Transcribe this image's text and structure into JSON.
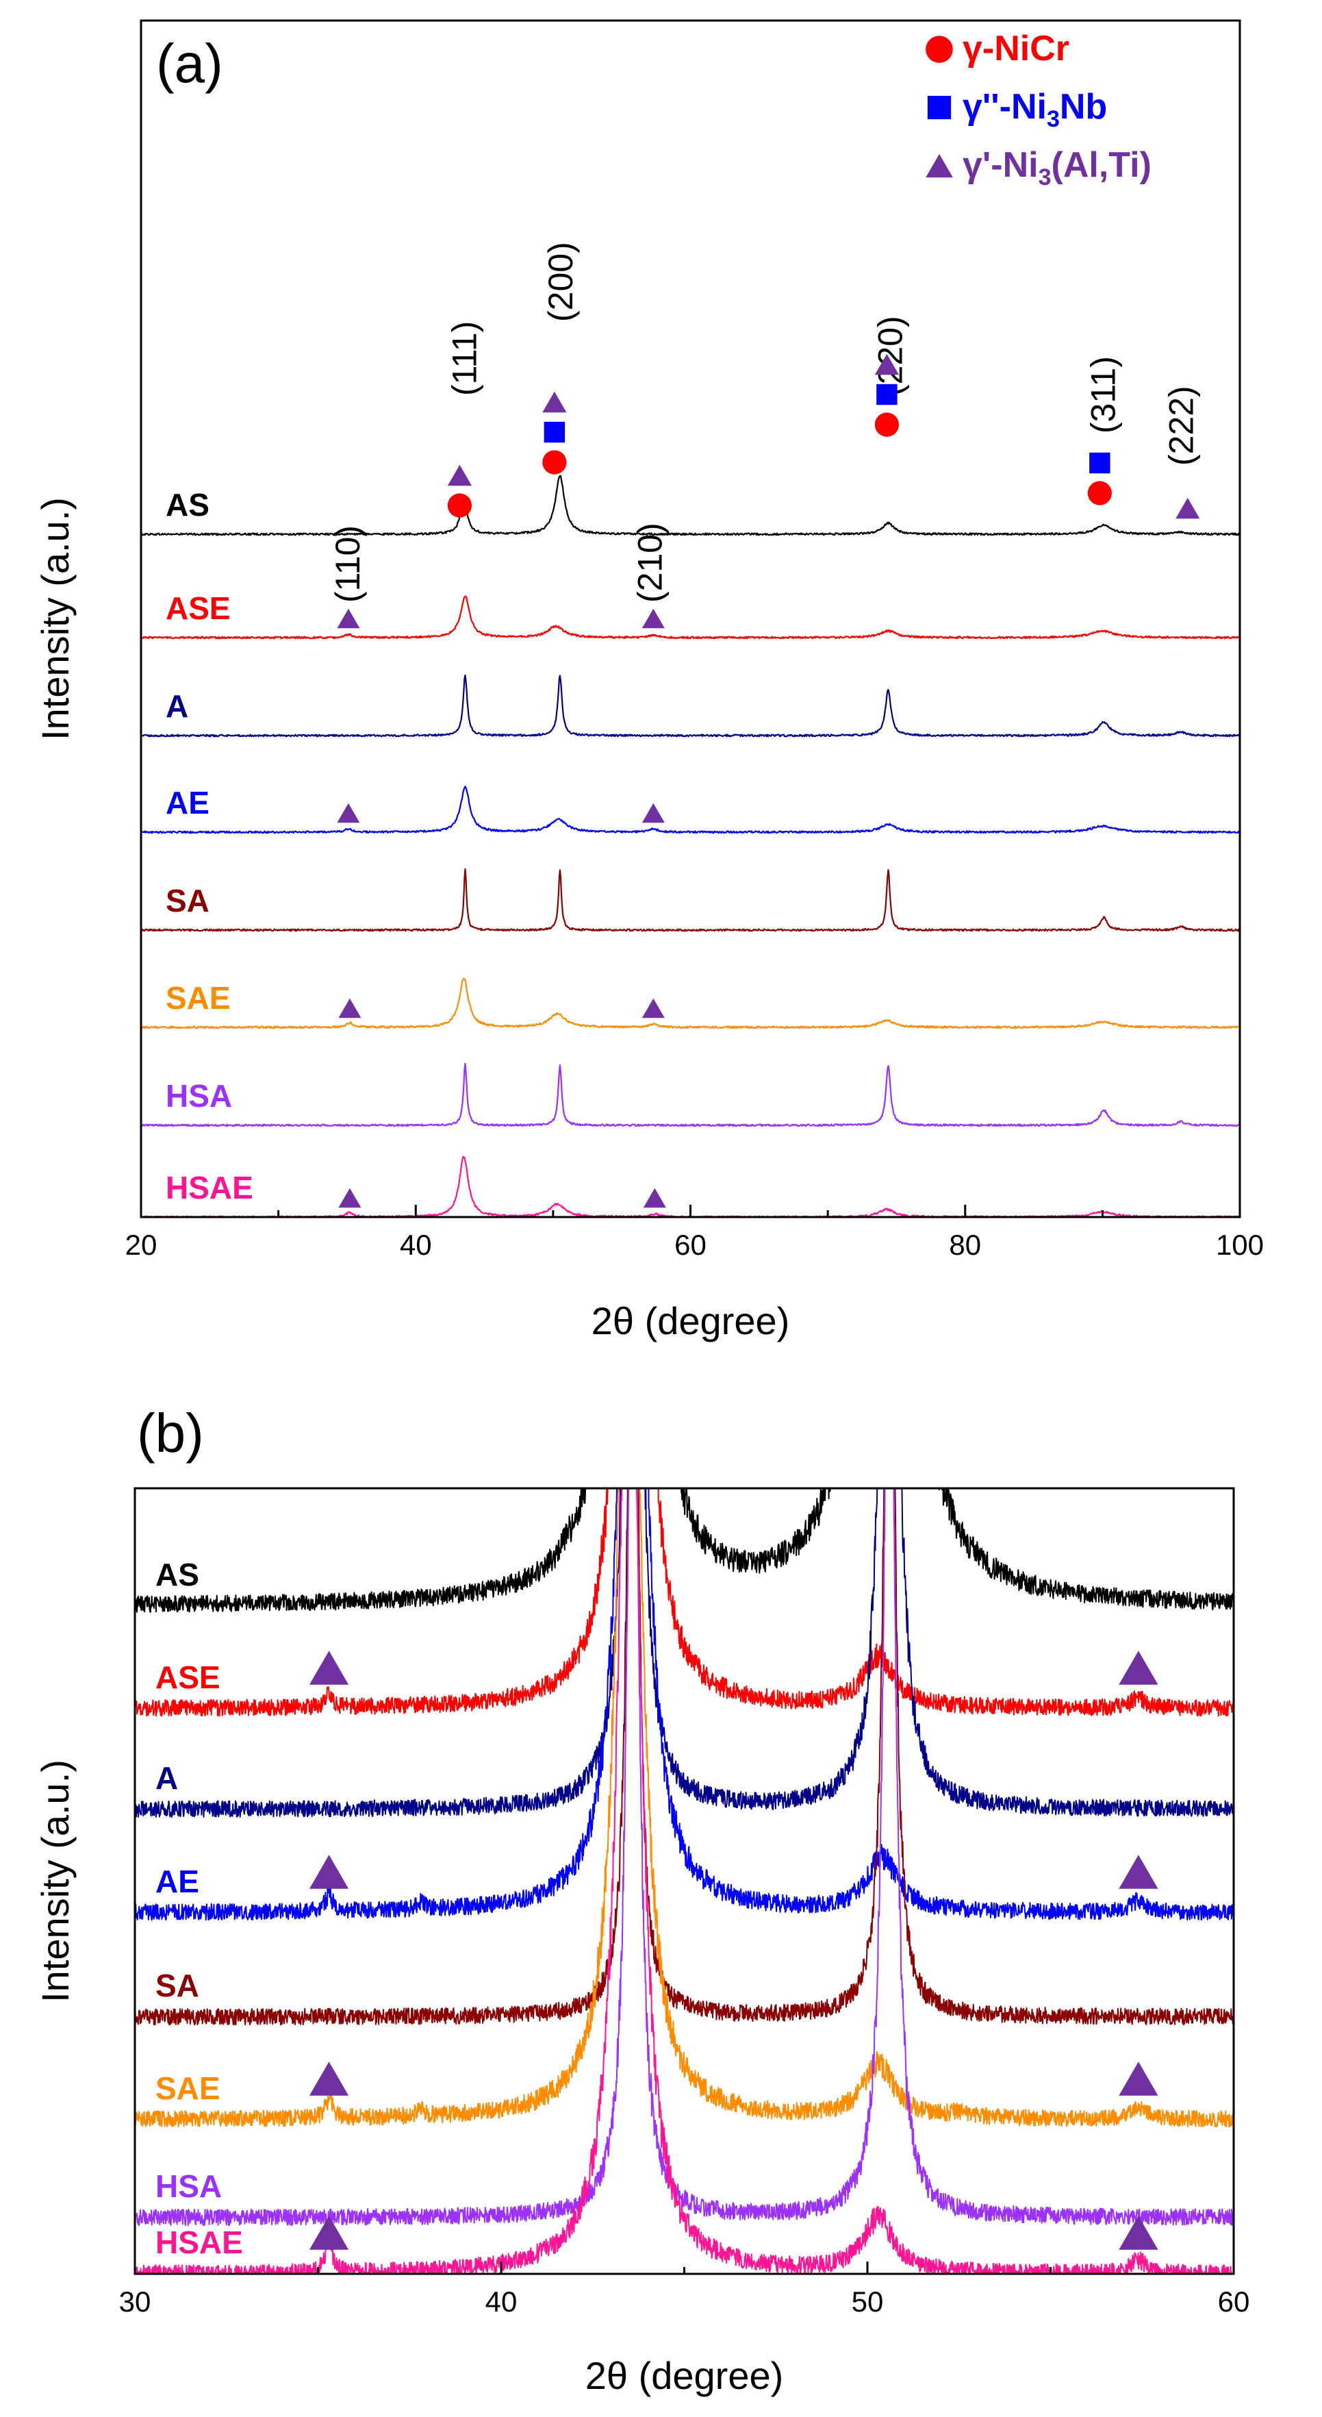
{
  "colors": {
    "AS": "#000000",
    "ASE": "#ff0000",
    "A": "#00008b",
    "AE": "#0000ff",
    "SA": "#8b0000",
    "SAE": "#ff8c00",
    "HSA": "#9b30ff",
    "HSAE": "#ff1493",
    "gamma": "#ff0000",
    "gammaDoublePrime": "#0000ff",
    "gammaPrime": "#7030a0"
  },
  "chart_data": [
    {
      "type": "line",
      "panel": "(a)",
      "xlabel": "2θ  (degree)",
      "ylabel": "Intensity (a.u.)",
      "xlim": [
        20,
        100
      ],
      "xticks": [
        "20",
        "40",
        "60",
        "80",
        "100"
      ],
      "legend": [
        {
          "symbol": "circle",
          "parts": [
            "γ-NiCr"
          ],
          "color_key": "gamma"
        },
        {
          "symbol": "square",
          "parts": [
            "γ''-Ni",
            "3",
            "Nb"
          ],
          "color_key": "gammaDoublePrime"
        },
        {
          "symbol": "triangle",
          "parts": [
            "γ'-Ni",
            "3",
            "(Al,Ti)"
          ],
          "color_key": "gammaPrime"
        }
      ],
      "planes": [
        {
          "label": "(110)",
          "x": 35.0
        },
        {
          "label": "(111)",
          "x": 43.5
        },
        {
          "label": "(200)",
          "x": 50.5
        },
        {
          "label": "(210)",
          "x": 57.0
        },
        {
          "label": "(220)",
          "x": 74.5
        },
        {
          "label": "(311)",
          "x": 90.0
        },
        {
          "label": "(222)",
          "x": 95.7
        }
      ],
      "phase_markers": [
        {
          "x": 43.2,
          "symbols": [
            "circle",
            "triangle"
          ]
        },
        {
          "x": 50.1,
          "symbols": [
            "circle",
            "square",
            "triangle"
          ]
        },
        {
          "x": 74.3,
          "symbols": [
            "circle",
            "square",
            "triangle"
          ]
        },
        {
          "x": 89.8,
          "symbols": [
            "circle",
            "square"
          ]
        },
        {
          "x": 96.2,
          "symbols": [
            "triangle"
          ]
        }
      ],
      "series": [
        {
          "name": "AS",
          "color_key": "AS",
          "peaks": [
            [
              43.5,
              0.45,
              0.3
            ],
            [
              50.5,
              0.78,
              0.4
            ],
            [
              74.4,
              0.15,
              0.5
            ],
            [
              90.1,
              0.12,
              0.7
            ],
            [
              95.7,
              0.03,
              0.5
            ]
          ],
          "markers": []
        },
        {
          "name": "ASE",
          "color_key": "ASE",
          "peaks": [
            [
              43.6,
              0.55,
              0.4
            ],
            [
              50.2,
              0.15,
              0.7
            ],
            [
              74.4,
              0.09,
              0.7
            ],
            [
              90.0,
              0.09,
              1.0
            ],
            [
              35.1,
              0.04,
              0.3
            ],
            [
              57.3,
              0.03,
              0.4
            ]
          ],
          "markers": [
            35.1,
            57.3
          ]
        },
        {
          "name": "A",
          "color_key": "A",
          "peaks": [
            [
              43.6,
              0.8,
              0.18
            ],
            [
              50.5,
              0.8,
              0.18
            ],
            [
              74.4,
              0.6,
              0.25
            ],
            [
              90.1,
              0.18,
              0.5
            ],
            [
              95.7,
              0.05,
              0.4
            ]
          ],
          "markers": []
        },
        {
          "name": "AE",
          "color_key": "AE",
          "peaks": [
            [
              43.6,
              0.6,
              0.4
            ],
            [
              50.4,
              0.17,
              0.7
            ],
            [
              74.4,
              0.1,
              0.7
            ],
            [
              90.0,
              0.08,
              1.0
            ],
            [
              35.1,
              0.04,
              0.3
            ],
            [
              57.3,
              0.04,
              0.4
            ]
          ],
          "markers": [
            35.1,
            57.3
          ]
        },
        {
          "name": "SA",
          "color_key": "SA",
          "peaks": [
            [
              43.6,
              0.8,
              0.12
            ],
            [
              50.5,
              0.8,
              0.13
            ],
            [
              74.4,
              0.8,
              0.15
            ],
            [
              90.1,
              0.17,
              0.3
            ],
            [
              95.7,
              0.05,
              0.3
            ]
          ],
          "markers": []
        },
        {
          "name": "SAE",
          "color_key": "SAE",
          "peaks": [
            [
              43.5,
              0.65,
              0.4
            ],
            [
              50.3,
              0.18,
              0.7
            ],
            [
              74.3,
              0.09,
              0.7
            ],
            [
              90.0,
              0.07,
              1.0
            ],
            [
              35.2,
              0.06,
              0.3
            ],
            [
              57.3,
              0.04,
              0.4
            ]
          ],
          "markers": [
            35.2,
            57.3
          ]
        },
        {
          "name": "HSA",
          "color_key": "HSA",
          "peaks": [
            [
              43.6,
              0.8,
              0.15
            ],
            [
              50.5,
              0.8,
              0.15
            ],
            [
              74.4,
              0.8,
              0.2
            ],
            [
              90.1,
              0.2,
              0.4
            ],
            [
              95.7,
              0.05,
              0.3
            ]
          ],
          "markers": []
        },
        {
          "name": "HSAE",
          "color_key": "HSAE",
          "peaks": [
            [
              43.5,
              0.8,
              0.4
            ],
            [
              50.3,
              0.17,
              0.7
            ],
            [
              74.3,
              0.1,
              0.7
            ],
            [
              90.0,
              0.07,
              1.0
            ],
            [
              35.2,
              0.06,
              0.3
            ],
            [
              57.4,
              0.04,
              0.4
            ]
          ],
          "markers": [
            35.2,
            57.4
          ]
        }
      ]
    },
    {
      "type": "line",
      "panel": "(b)",
      "xlabel": "2θ  (degree)",
      "ylabel": "Intensity (a.u.)",
      "xlim": [
        30,
        60
      ],
      "xticks": [
        "30",
        "40",
        "50",
        "60"
      ],
      "series": [
        {
          "name": "AS",
          "color_key": "AS",
          "peaks": [
            [
              43.6,
              20,
              0.45
            ],
            [
              50.5,
              20,
              0.55
            ],
            [
              41.8,
              0.12,
              0.15
            ]
          ],
          "markers": []
        },
        {
          "name": "ASE",
          "color_key": "ASE",
          "peaks": [
            [
              43.6,
              20,
              0.35
            ],
            [
              50.3,
              0.95,
              0.5
            ],
            [
              35.3,
              0.3,
              0.1
            ],
            [
              57.4,
              0.18,
              0.25
            ]
          ],
          "markers": [
            35.3,
            57.4
          ]
        },
        {
          "name": "A",
          "color_key": "A",
          "peaks": [
            [
              43.6,
              20,
              0.22
            ],
            [
              50.6,
              20,
              0.22
            ]
          ],
          "markers": []
        },
        {
          "name": "AE",
          "color_key": "AE",
          "peaks": [
            [
              43.6,
              20,
              0.35
            ],
            [
              50.4,
              1.0,
              0.5
            ],
            [
              35.3,
              0.32,
              0.12
            ],
            [
              37.8,
              0.12,
              0.15
            ],
            [
              57.4,
              0.22,
              0.25
            ]
          ],
          "markers": [
            35.3,
            57.4
          ]
        },
        {
          "name": "SA",
          "color_key": "SA",
          "peaks": [
            [
              43.6,
              20,
              0.15
            ],
            [
              50.6,
              20,
              0.15
            ]
          ],
          "markers": []
        },
        {
          "name": "SAE",
          "color_key": "SAE",
          "peaks": [
            [
              43.5,
              20,
              0.35
            ],
            [
              50.3,
              1.0,
              0.5
            ],
            [
              35.3,
              0.35,
              0.12
            ],
            [
              37.8,
              0.1,
              0.15
            ],
            [
              52.5,
              0.08,
              0.3
            ],
            [
              57.4,
              0.2,
              0.25
            ]
          ],
          "markers": [
            35.3,
            57.4
          ]
        },
        {
          "name": "HSA",
          "color_key": "HSA",
          "peaks": [
            [
              43.6,
              20,
              0.18
            ],
            [
              50.6,
              20,
              0.18
            ]
          ],
          "markers": []
        },
        {
          "name": "HSAE",
          "color_key": "HSAE",
          "peaks": [
            [
              43.5,
              20,
              0.35
            ],
            [
              50.3,
              1.0,
              0.5
            ],
            [
              35.3,
              0.7,
              0.1
            ],
            [
              57.4,
              0.25,
              0.25
            ]
          ],
          "markers": [
            35.3,
            57.4
          ]
        }
      ]
    }
  ]
}
